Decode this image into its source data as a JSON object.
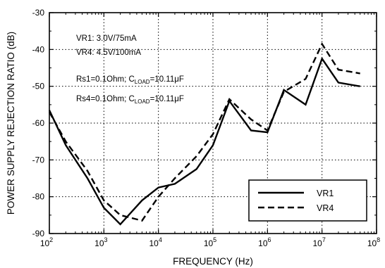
{
  "chart_data": {
    "type": "line",
    "xlabel": "FREQUENCY (Hz)",
    "ylabel": "POWER SUPPLY REJECTION RATIO (dB)",
    "x_scale": "log",
    "xlim": [
      100,
      100000000
    ],
    "ylim": [
      -90,
      -30
    ],
    "grid": true,
    "grid_style": "dotted",
    "x_ticks": [
      {
        "base": "10",
        "exp": "2"
      },
      {
        "base": "10",
        "exp": "3"
      },
      {
        "base": "10",
        "exp": "4"
      },
      {
        "base": "10",
        "exp": "5"
      },
      {
        "base": "10",
        "exp": "6"
      },
      {
        "base": "10",
        "exp": "7"
      },
      {
        "base": "10",
        "exp": "8"
      }
    ],
    "y_ticks": [
      "-30",
      "-40",
      "-50",
      "-60",
      "-70",
      "-80",
      "-90"
    ],
    "annotations": [
      {
        "parts": [
          {
            "t": "VR1: 3.0V/75mA"
          }
        ]
      },
      {
        "parts": [
          {
            "t": "VR4: 4.5V/100mA"
          }
        ]
      },
      {
        "parts": [
          {
            "t": "Rs1=0.1Ohm; C"
          },
          {
            "t": "LOAD",
            "sub": true
          },
          {
            "t": "=10.11μF"
          }
        ]
      },
      {
        "parts": [
          {
            "t": "Rs4=0.1Ohm; C"
          },
          {
            "t": "LOAD",
            "sub": true
          },
          {
            "t": "=10.11μF"
          }
        ]
      }
    ],
    "legend": {
      "position": "bottom-right"
    },
    "series": [
      {
        "name": "VR1",
        "style": "solid",
        "color": "#000000",
        "x": [
          100,
          200,
          500,
          1000,
          2000,
          5000,
          10000,
          20000,
          50000,
          100000,
          200000,
          500000,
          1000000,
          2000000,
          5000000,
          10000000,
          20000000,
          50000000
        ],
        "y": [
          -56.5,
          -66,
          -75,
          -83,
          -87.5,
          -81,
          -77.5,
          -76.5,
          -72.5,
          -66,
          -54,
          -62,
          -62.5,
          -51,
          -55,
          -42.5,
          -49,
          -50
        ]
      },
      {
        "name": "VR4",
        "style": "dashed",
        "color": "#000000",
        "x": [
          100,
          200,
          500,
          1000,
          2000,
          5000,
          10000,
          20000,
          50000,
          100000,
          200000,
          500000,
          1000000,
          2000000,
          5000000,
          10000000,
          20000000,
          50000000
        ],
        "y": [
          -57,
          -65,
          -73,
          -81,
          -85,
          -86.5,
          -80,
          -75,
          -69,
          -63,
          -53.5,
          -59,
          -62,
          -51.5,
          -48,
          -38.5,
          -45.5,
          -46.5
        ]
      }
    ]
  }
}
